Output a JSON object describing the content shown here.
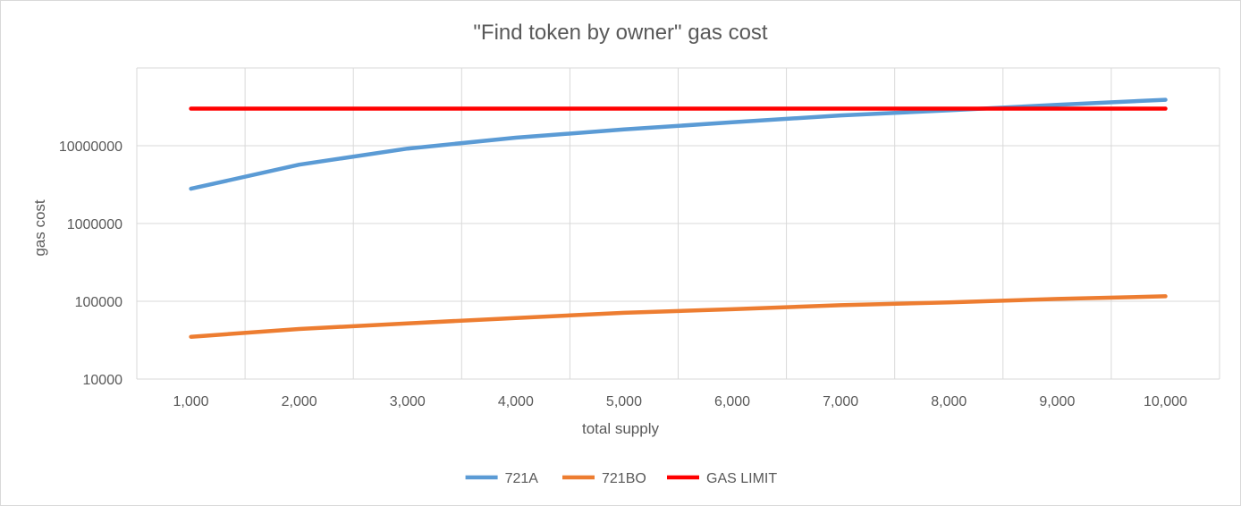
{
  "chart_data": {
    "type": "line",
    "title": "\"Find token by owner\" gas cost",
    "xlabel": "total supply",
    "ylabel": "gas cost",
    "x": [
      1000,
      2000,
      3000,
      4000,
      5000,
      6000,
      7000,
      8000,
      9000,
      10000
    ],
    "x_tick_labels": [
      "1,000",
      "2,000",
      "3,000",
      "4,000",
      "5,000",
      "6,000",
      "7,000",
      "8,000",
      "9,000",
      "10,000"
    ],
    "y_scale": "log",
    "ylim": [
      10000,
      100000000
    ],
    "y_tick_values": [
      10000,
      100000,
      1000000,
      10000000
    ],
    "y_tick_labels": [
      "10000",
      "100000",
      "1000000",
      "10000000"
    ],
    "grid": true,
    "legend_position": "bottom",
    "series": [
      {
        "name": "721A",
        "color": "#5b9bd5",
        "values": [
          2800000,
          5700000,
          9200000,
          12700000,
          16200000,
          20000000,
          24500000,
          28500000,
          33500000,
          39000000
        ]
      },
      {
        "name": "721BO",
        "color": "#ed7d31",
        "values": [
          35000,
          44000,
          52000,
          61000,
          71000,
          79000,
          89000,
          97000,
          107000,
          116000
        ]
      },
      {
        "name": "GAS LIMIT",
        "color": "#ff0000",
        "values": [
          30000000,
          30000000,
          30000000,
          30000000,
          30000000,
          30000000,
          30000000,
          30000000,
          30000000,
          30000000
        ]
      }
    ]
  }
}
